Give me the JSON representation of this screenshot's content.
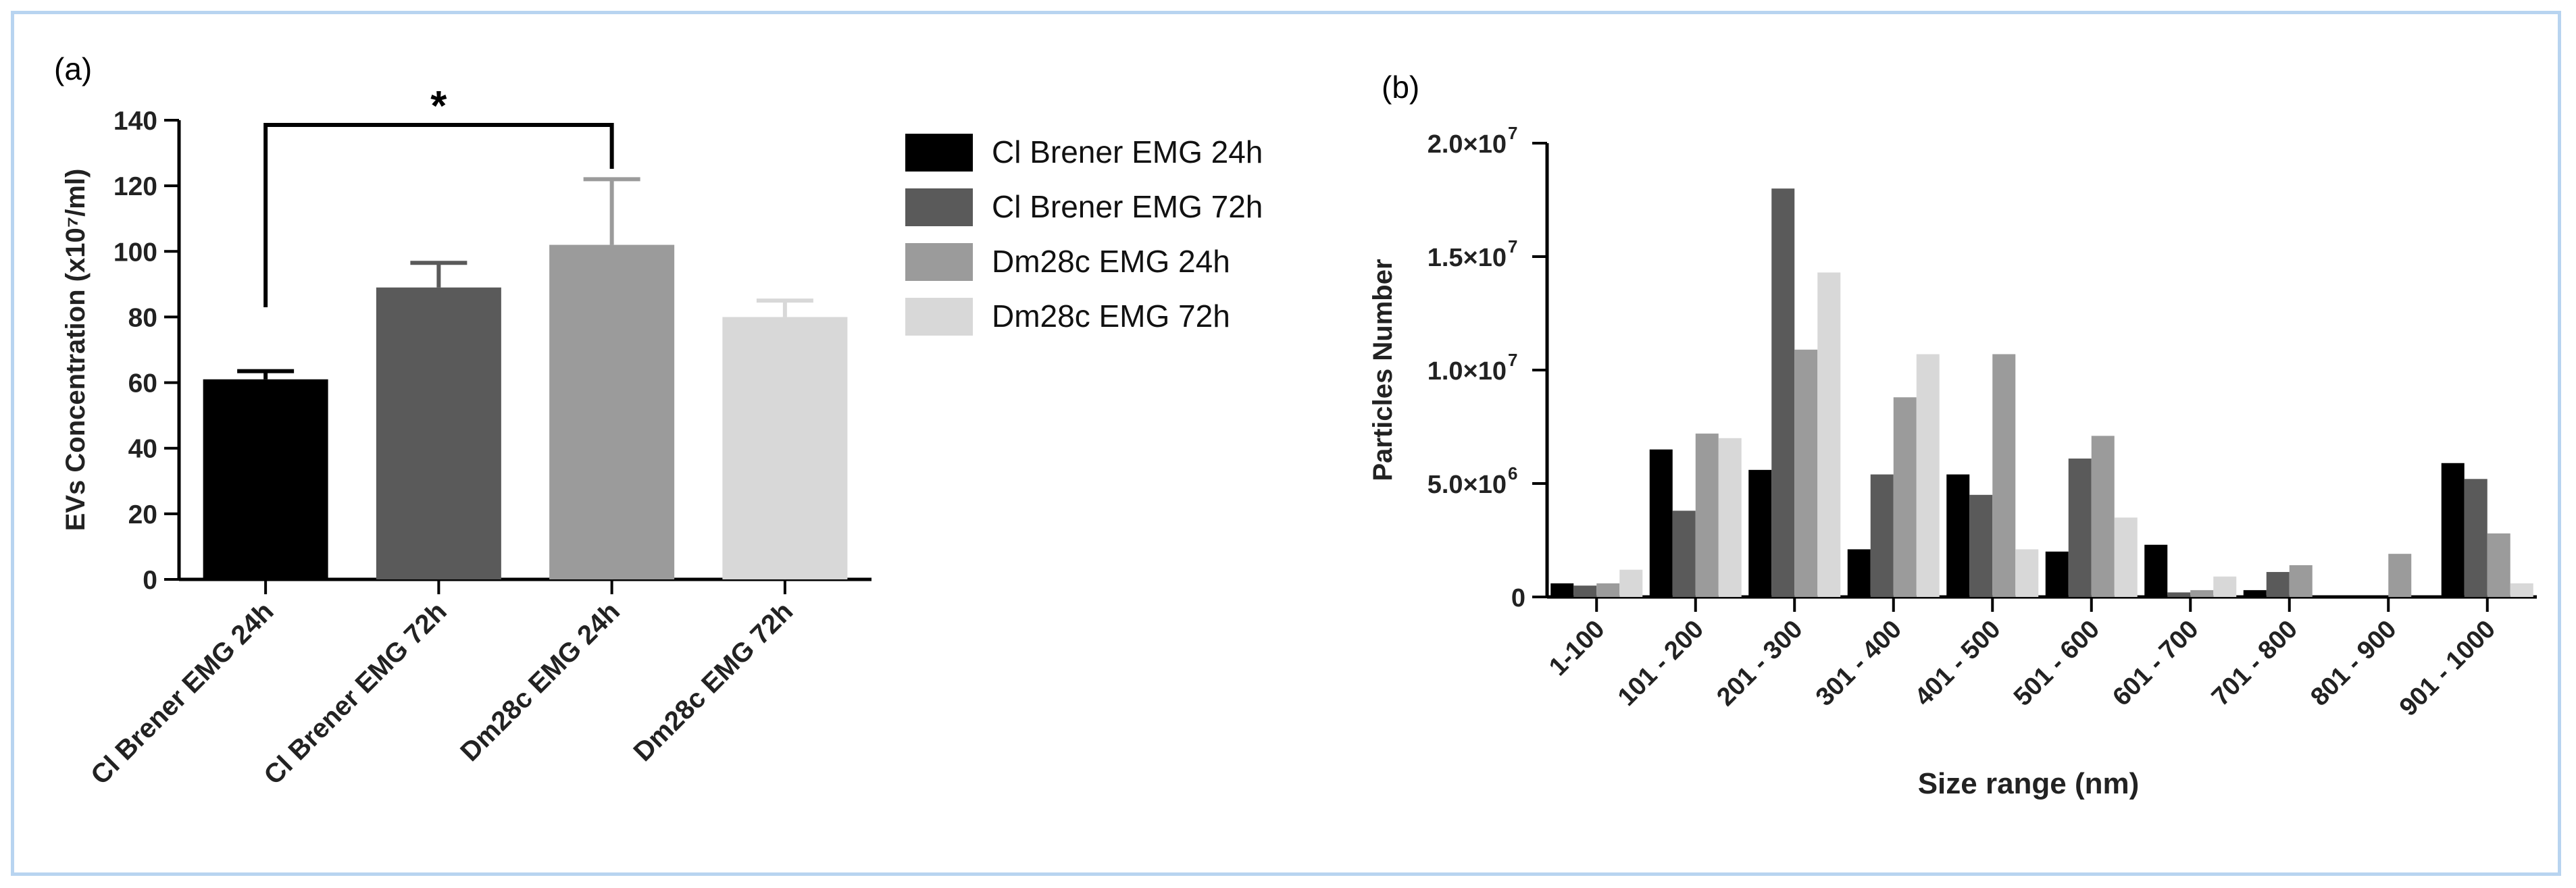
{
  "colors": {
    "frame": "#b8d4f0",
    "series": [
      "#000000",
      "#5a5a5a",
      "#9b9b9b",
      "#d8d8d8"
    ],
    "axis": "#000000"
  },
  "chart_data": [
    {
      "panel_label": "(a)",
      "type": "bar",
      "categories": [
        "Cl Brener EMG 24h",
        "Cl Brener EMG 72h",
        "Dm28c EMG 24h",
        "Dm28c EMG 72h"
      ],
      "values": [
        61,
        89,
        102,
        80
      ],
      "error_bars": [
        2.5,
        7.5,
        20,
        5
      ],
      "ylabel": "EVs Concentration (x10⁷/ml)",
      "xlabel": "",
      "ylim": [
        0,
        140
      ],
      "yticks": [
        "0",
        "20",
        "40",
        "60",
        "80",
        "100",
        "120",
        "140"
      ],
      "significance": {
        "between": [
          "Cl Brener EMG 24h",
          "Dm28c EMG 24h"
        ],
        "label": "*"
      },
      "legend": {
        "position": "right",
        "entries": [
          "Cl Brener EMG 24h",
          "Cl Brener EMG 72h",
          "Dm28c EMG 24h",
          "Dm28c EMG 72h"
        ]
      }
    },
    {
      "panel_label": "(b)",
      "type": "bar",
      "categories": [
        "1-100",
        "101 - 200",
        "201 - 300",
        "301 - 400",
        "401 - 500",
        "501 - 600",
        "601 - 700",
        "701 - 800",
        "801 - 900",
        "901 - 1000"
      ],
      "series": [
        {
          "name": "Cl Brener EMG 24h",
          "values": [
            600000,
            6500000,
            5600000,
            2100000,
            5400000,
            2000000,
            2300000,
            300000,
            0,
            5900000
          ]
        },
        {
          "name": "Cl Brener EMG 72h",
          "values": [
            500000,
            3800000,
            18000000,
            5400000,
            4500000,
            6100000,
            200000,
            1100000,
            0,
            5200000
          ]
        },
        {
          "name": "Dm28c EMG 24h",
          "values": [
            600000,
            7200000,
            10900000,
            8800000,
            10700000,
            7100000,
            300000,
            1400000,
            1900000,
            2800000
          ]
        },
        {
          "name": "Dm28c EMG 72h",
          "values": [
            1200000,
            7000000,
            14300000,
            10700000,
            2100000,
            3500000,
            900000,
            0,
            0,
            600000
          ]
        }
      ],
      "xlabel": "Size range (nm)",
      "ylabel": "Particles Number",
      "ylim": [
        0,
        20000000
      ],
      "yticks": [
        {
          "value": 0,
          "mantissa": "0",
          "exp": ""
        },
        {
          "value": 5000000,
          "mantissa": "5.0×10",
          "exp": "6"
        },
        {
          "value": 10000000,
          "mantissa": "1.0×10",
          "exp": "7"
        },
        {
          "value": 15000000,
          "mantissa": "1.5×10",
          "exp": "7"
        },
        {
          "value": 20000000,
          "mantissa": "2.0×10",
          "exp": "7"
        }
      ]
    }
  ]
}
